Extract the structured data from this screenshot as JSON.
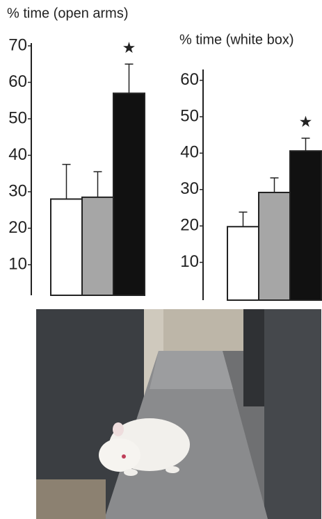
{
  "chart_data": [
    {
      "type": "bar",
      "title": "% time (open arms)",
      "categories": [
        null,
        null,
        null
      ],
      "values": [
        28,
        28.5,
        57
      ],
      "errors": [
        9.5,
        7,
        8
      ],
      "colors": [
        "#ffffff",
        "#a6a6a6",
        "#111111"
      ],
      "ylim": [
        0,
        70
      ],
      "yticks": [
        10,
        20,
        30,
        40,
        50,
        60,
        70
      ],
      "annotation": "★"
    },
    {
      "type": "bar",
      "title": "% time (white box)",
      "categories": [
        null,
        null,
        null
      ],
      "values": [
        19.8,
        29.2,
        40.6
      ],
      "errors": [
        4,
        4,
        3.5
      ],
      "colors": [
        "#ffffff",
        "#a6a6a6",
        "#111111"
      ],
      "ylim": [
        0,
        60
      ],
      "yticks": [
        10,
        20,
        30,
        40,
        50,
        60
      ],
      "annotation": "★"
    }
  ]
}
